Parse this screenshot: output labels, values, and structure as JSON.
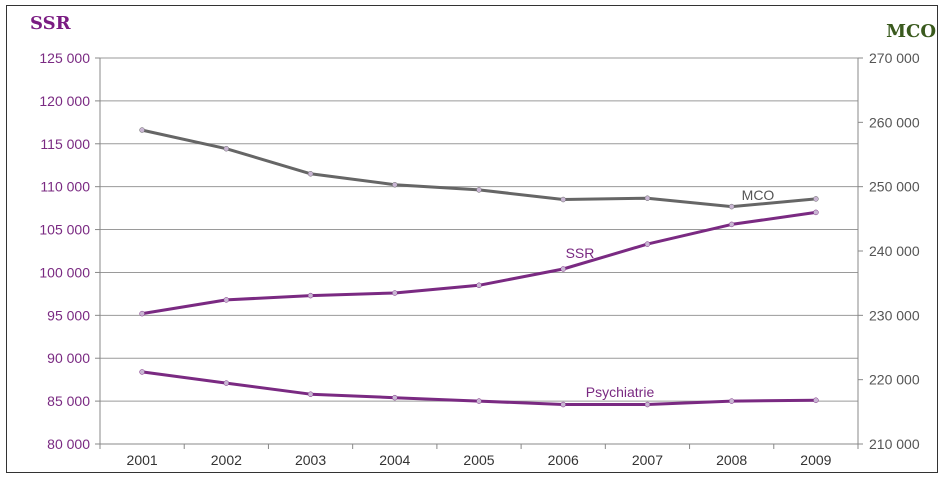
{
  "chart_data": {
    "type": "line",
    "left_axis_title": "SSR",
    "right_axis_title": "MCO",
    "x": [
      "2001",
      "2002",
      "2003",
      "2004",
      "2005",
      "2006",
      "2007",
      "2008",
      "2009"
    ],
    "left_ylim": [
      80000,
      125000
    ],
    "right_ylim": [
      210000,
      270000
    ],
    "left_ticks": [
      "80 000",
      "85 000",
      "90 000",
      "95 000",
      "100 000",
      "105 000",
      "110 000",
      "115 000",
      "120 000",
      "125 000"
    ],
    "right_ticks": [
      "210 000",
      "220 000",
      "230 000",
      "240 000",
      "250 000",
      "260 000",
      "270 000"
    ],
    "grid": true,
    "series": [
      {
        "name": "MCO",
        "axis": "right",
        "color": "#666666",
        "values": [
          258800,
          255900,
          252000,
          250300,
          249500,
          248000,
          248200,
          246900,
          248100
        ]
      },
      {
        "name": "SSR",
        "axis": "left",
        "color": "#7a2a82",
        "values": [
          95200,
          96800,
          97300,
          97600,
          98500,
          100400,
          103300,
          105600,
          107000
        ]
      },
      {
        "name": "Psychiatrie",
        "axis": "left",
        "color": "#7a2a82",
        "values": [
          88400,
          87100,
          85800,
          85400,
          85000,
          84600,
          84600,
          85000,
          85100
        ]
      }
    ]
  },
  "colors": {
    "ssr_title": "#7a1b82",
    "mco_title": "#3a5a1e",
    "gridline": "#9a9a9a"
  }
}
